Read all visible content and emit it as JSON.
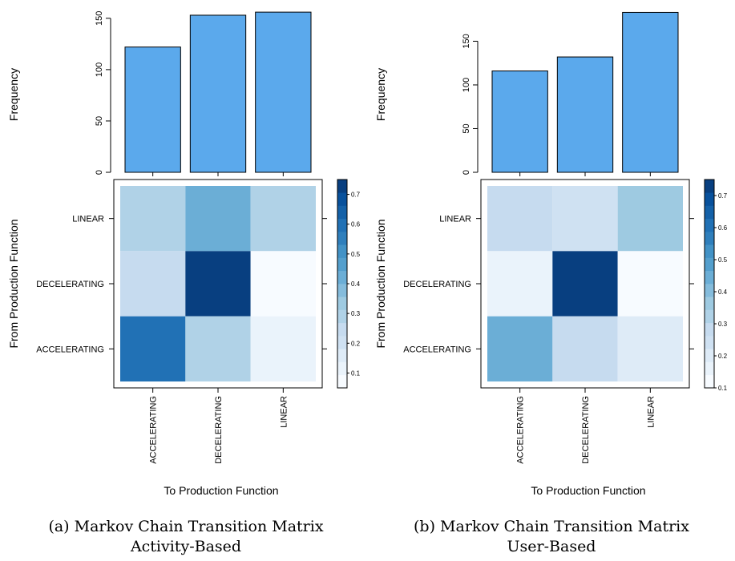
{
  "captions": [
    {
      "line1": "(a) Markov Chain Transition Matrix",
      "line2": "Activity-Based"
    },
    {
      "line1": "(b) Markov Chain Transition Matrix",
      "line2": "User-Based"
    }
  ],
  "colors": {
    "bar_fill": "#5ba9ec",
    "palette": [
      "#f7fbff",
      "#eaf3fb",
      "#deebf7",
      "#cfe1f2",
      "#c6dbef",
      "#b0d2e7",
      "#9ecae1",
      "#85bcdc",
      "#6baed6",
      "#549fcd",
      "#4292c6",
      "#2f7fbc",
      "#2171b5",
      "#1461a8",
      "#08519c",
      "#083f80"
    ]
  },
  "chart_data": [
    {
      "type": "heatmap",
      "title": "",
      "xlabel": "To Production Function",
      "ylabel": "From Production Function",
      "x_categories": [
        "ACCELERATING",
        "DECELERATING",
        "LINEAR"
      ],
      "y_categories": [
        "ACCELERATING",
        "DECELERATING",
        "LINEAR"
      ],
      "matrix": {
        "ACCELERATING": [
          0.6,
          0.3,
          0.1
        ],
        "DECELERATING": [
          0.25,
          0.73,
          0.03
        ],
        "LINEAR": [
          0.3,
          0.4,
          0.3
        ]
      },
      "legend_ticks": [
        0.1,
        0.2,
        0.3,
        0.4,
        0.5,
        0.6,
        0.7
      ],
      "legend_range": [
        0.05,
        0.75
      ],
      "marginal_bar": {
        "type": "bar",
        "ylabel": "Frequency",
        "categories": [
          "ACCELERATING",
          "DECELERATING",
          "LINEAR"
        ],
        "values": [
          122,
          153,
          156
        ],
        "yticks": [
          0,
          50,
          100,
          150
        ],
        "ylim": [
          0,
          160
        ]
      }
    },
    {
      "type": "heatmap",
      "title": "",
      "xlabel": "To Production Function",
      "ylabel": "From Production Function",
      "x_categories": [
        "ACCELERATING",
        "DECELERATING",
        "LINEAR"
      ],
      "y_categories": [
        "ACCELERATING",
        "DECELERATING",
        "LINEAR"
      ],
      "matrix": {
        "ACCELERATING": [
          0.45,
          0.3,
          0.2
        ],
        "DECELERATING": [
          0.15,
          0.74,
          0.1
        ],
        "LINEAR": [
          0.3,
          0.25,
          0.38
        ]
      },
      "legend_ticks": [
        0.1,
        0.2,
        0.3,
        0.4,
        0.5,
        0.6,
        0.7
      ],
      "legend_range": [
        0.1,
        0.75
      ],
      "marginal_bar": {
        "type": "bar",
        "ylabel": "Frequency",
        "categories": [
          "ACCELERATING",
          "DECELERATING",
          "LINEAR"
        ],
        "values": [
          116,
          132,
          183
        ],
        "yticks": [
          0,
          50,
          100,
          150
        ],
        "ylim": [
          0,
          188
        ]
      }
    }
  ]
}
